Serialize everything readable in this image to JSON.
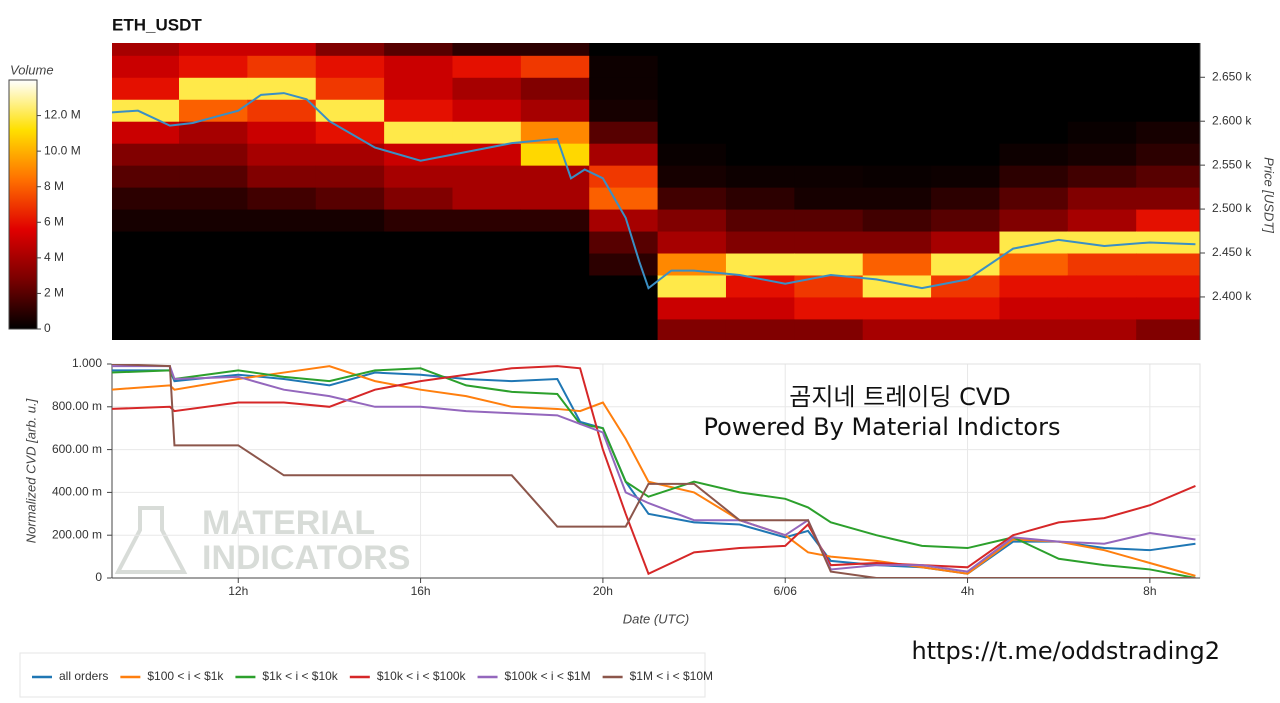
{
  "chart_data": [
    {
      "type": "heatmap",
      "title": "ETH_USDT",
      "ylabel": "Price [USDT]",
      "xlim": [
        9.23,
        33.1
      ],
      "ylim": [
        2351,
        2689
      ],
      "yticks": [
        {
          "value": 2400,
          "label": "2.400 k"
        },
        {
          "value": 2450,
          "label": "2.450 k"
        },
        {
          "value": 2500,
          "label": "2.500 k"
        },
        {
          "value": 2550,
          "label": "2.550 k"
        },
        {
          "value": 2600,
          "label": "2.600 k"
        },
        {
          "value": 2650,
          "label": "2.650 k"
        }
      ],
      "xbins": [
        9.2,
        10.7,
        12.2,
        13.7,
        15.2,
        16.7,
        18.2,
        19.7,
        21.2,
        22.7,
        24.2,
        25.7,
        27.2,
        28.7,
        30.2,
        31.7,
        33.2
      ],
      "ybins": [
        2350,
        2375,
        2400,
        2425,
        2450,
        2475,
        2500,
        2525,
        2550,
        2575,
        2600,
        2625,
        2650,
        2675,
        2700
      ],
      "z": [
        [
          0,
          0,
          0,
          0,
          0,
          0.5,
          1,
          2,
          3,
          5,
          12,
          6,
          5,
          4
        ],
        [
          0,
          0,
          0,
          0,
          0,
          0.5,
          1,
          2,
          3,
          4,
          8,
          12,
          6,
          5
        ],
        [
          0,
          0,
          0,
          0,
          0,
          0.5,
          1.5,
          3,
          4,
          5,
          7,
          12,
          7,
          5
        ],
        [
          0,
          0,
          0,
          0,
          0,
          0.5,
          2,
          3,
          4,
          6,
          12,
          7,
          6,
          3
        ],
        [
          0,
          0,
          0,
          0,
          0,
          1,
          3,
          4,
          5,
          12,
          6,
          5,
          5,
          2
        ],
        [
          0,
          0,
          0,
          0,
          0,
          1,
          4,
          4,
          5,
          12,
          5,
          4,
          6,
          1
        ],
        [
          0,
          0,
          0,
          0,
          0,
          1,
          4,
          4,
          11,
          9,
          4,
          3,
          7,
          1
        ],
        [
          0,
          0,
          0,
          1,
          2,
          4,
          8,
          7,
          4,
          2,
          0.5,
          0.3,
          0.3,
          0
        ],
        [
          3,
          5,
          12,
          9,
          4,
          3,
          1.5,
          0.5,
          0.2,
          0,
          0,
          0,
          0,
          0
        ],
        [
          3,
          5,
          6,
          12,
          3,
          2,
          1,
          0.3,
          0,
          0,
          0,
          0,
          0,
          0
        ],
        [
          3,
          6,
          7,
          12,
          3,
          2,
          0.5,
          0.3,
          0,
          0,
          0,
          0,
          0,
          0
        ],
        [
          4,
          6,
          12,
          8,
          3,
          1.5,
          0.5,
          0.2,
          0,
          0,
          0,
          0,
          0,
          0
        ],
        [
          4,
          6,
          7,
          12,
          4,
          2,
          1,
          0.3,
          0,
          0,
          0,
          0,
          0,
          0
        ],
        [
          4,
          5,
          6,
          8,
          12,
          3,
          2,
          1,
          0.3,
          0,
          0,
          0,
          0,
          0
        ],
        [
          4,
          5,
          6,
          7,
          12,
          4,
          3,
          1.5,
          0.5,
          0.2,
          0,
          0,
          0,
          0
        ],
        [
          3,
          5,
          6,
          7,
          12,
          6,
          3,
          2,
          1,
          0.5,
          0,
          0,
          0,
          0
        ]
      ],
      "colorbar": {
        "title": "Volume",
        "zlim": [
          0,
          14
        ],
        "ticks": [
          0,
          {
            "value": 2,
            "label": "2 M"
          },
          {
            "value": 4,
            "label": "4 M"
          },
          {
            "value": 6,
            "label": "6 M"
          },
          {
            "value": 8,
            "label": "8 M"
          },
          {
            "value": 10,
            "label": "10.0 M"
          },
          {
            "value": 12,
            "label": "12.0 M"
          }
        ],
        "colormap": [
          "#000000",
          "#7a0000",
          "#e00000",
          "#ff7000",
          "#ffe000",
          "#ffffff"
        ]
      },
      "price_line": {
        "color": "#3a8fc4",
        "x": [
          9.2,
          9.8,
          10.5,
          11,
          11.5,
          12,
          12.5,
          13,
          13.5,
          14,
          15,
          16,
          17,
          18,
          19,
          19.3,
          19.6,
          20,
          20.5,
          20.8,
          21,
          21.5,
          22,
          23,
          24,
          25,
          26,
          27,
          28,
          29,
          30,
          31,
          32,
          33
        ],
        "values": [
          2610,
          2612,
          2595,
          2598,
          2605,
          2612,
          2630,
          2632,
          2625,
          2600,
          2570,
          2555,
          2565,
          2575,
          2580,
          2535,
          2545,
          2535,
          2490,
          2440,
          2410,
          2430,
          2430,
          2425,
          2415,
          2425,
          2420,
          2410,
          2420,
          2455,
          2465,
          2458,
          2462,
          2460
        ]
      }
    },
    {
      "type": "line",
      "xlabel": "Date (UTC)",
      "ylabel": "Normalized CVD [arb. u.]",
      "xlim": [
        9.23,
        33.1
      ],
      "ylim": [
        0,
        1
      ],
      "xticks": [
        {
          "value": 12,
          "label": "12h"
        },
        {
          "value": 16,
          "label": "16h"
        },
        {
          "value": 20,
          "label": "20h"
        },
        {
          "value": 24,
          "label": "6/06"
        },
        {
          "value": 28,
          "label": "4h"
        },
        {
          "value": 32,
          "label": "8h"
        }
      ],
      "yticks": [
        0,
        {
          "value": 0.2,
          "label": "200.00 m"
        },
        {
          "value": 0.4,
          "label": "400.00 m"
        },
        {
          "value": 0.6,
          "label": "600.00 m"
        },
        {
          "value": 0.8,
          "label": "800.00 m"
        },
        {
          "value": 1,
          "label": "1.000"
        }
      ],
      "grid": true,
      "annotations": [
        "곰지네 트레이딩 CVD",
        "Powered By Material Indictors"
      ],
      "watermark": [
        "MATERIAL",
        "INDICATORS"
      ],
      "x": [
        9.2,
        10.5,
        10.6,
        12,
        13,
        14,
        15,
        16,
        17,
        18,
        19,
        19.5,
        20,
        20.5,
        21,
        22,
        23,
        24,
        24.5,
        25,
        26,
        27,
        28,
        29,
        30,
        31,
        32,
        33
      ],
      "series": [
        {
          "name": "all orders",
          "color": "#1f77b4",
          "values": [
            0.97,
            0.97,
            0.92,
            0.95,
            0.93,
            0.9,
            0.96,
            0.95,
            0.93,
            0.92,
            0.93,
            0.73,
            0.7,
            0.45,
            0.3,
            0.26,
            0.25,
            0.19,
            0.22,
            0.08,
            0.06,
            0.05,
            0.02,
            0.17,
            0.17,
            0.14,
            0.13,
            0.16
          ]
        },
        {
          "name": "$100 < i < $1k",
          "color": "#ff7f0e",
          "values": [
            0.88,
            0.9,
            0.88,
            0.93,
            0.96,
            0.99,
            0.92,
            0.88,
            0.85,
            0.8,
            0.79,
            0.78,
            0.82,
            0.65,
            0.45,
            0.4,
            0.27,
            0.2,
            0.12,
            0.1,
            0.08,
            0.05,
            0.02,
            0.18,
            0.17,
            0.13,
            0.07,
            0.01
          ]
        },
        {
          "name": "$1k < i < $10k",
          "color": "#2ca02c",
          "values": [
            0.96,
            0.97,
            0.93,
            0.97,
            0.94,
            0.92,
            0.97,
            0.98,
            0.9,
            0.87,
            0.86,
            0.72,
            0.7,
            0.45,
            0.38,
            0.45,
            0.4,
            0.37,
            0.33,
            0.26,
            0.2,
            0.15,
            0.14,
            0.19,
            0.09,
            0.06,
            0.04,
            0.0
          ]
        },
        {
          "name": "$10k < i < $100k",
          "color": "#d62728",
          "values": [
            0.79,
            0.8,
            0.78,
            0.82,
            0.82,
            0.8,
            0.88,
            0.92,
            0.95,
            0.98,
            0.99,
            0.98,
            0.6,
            0.3,
            0.02,
            0.12,
            0.14,
            0.15,
            0.25,
            0.06,
            0.07,
            0.06,
            0.05,
            0.2,
            0.26,
            0.28,
            0.34,
            0.43
          ]
        },
        {
          "name": "$100k < i < $1M",
          "color": "#9467bd",
          "values": [
            0.99,
            0.99,
            0.93,
            0.94,
            0.88,
            0.85,
            0.8,
            0.8,
            0.78,
            0.77,
            0.76,
            0.72,
            0.68,
            0.4,
            0.35,
            0.27,
            0.27,
            0.2,
            0.27,
            0.04,
            0.06,
            0.06,
            0.03,
            0.19,
            0.17,
            0.16,
            0.21,
            0.18
          ]
        },
        {
          "name": "$1M < i < $10M",
          "color": "#8c564b",
          "values": [
            1.0,
            0.99,
            0.62,
            0.62,
            0.48,
            0.48,
            0.48,
            0.48,
            0.48,
            0.48,
            0.24,
            0.24,
            0.24,
            0.24,
            0.44,
            0.44,
            0.27,
            0.27,
            0.27,
            0.03,
            0.0,
            0.0,
            0.0,
            0.0,
            0.0,
            0.0,
            0.0,
            0.0
          ]
        }
      ]
    }
  ],
  "footer": {
    "link": "https://t.me/oddstrading2"
  }
}
